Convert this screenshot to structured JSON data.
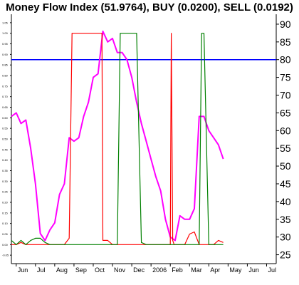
{
  "chart_data": {
    "type": "line",
    "title": "Money Flow Index (51.9764), BUY (0.0200), SELL (0.0192)",
    "xlabel": "",
    "ylabel": "",
    "x_ticks": [
      "Jun",
      "Jul",
      "Aug",
      "Sep",
      "Oct",
      "Nov",
      "Dec",
      "2006",
      "Feb",
      "Mar",
      "Apr",
      "May",
      "Jun",
      "Jul"
    ],
    "x_tick_index": [
      0,
      4,
      8,
      12,
      16,
      20,
      24,
      28,
      32,
      36,
      40,
      44,
      48,
      52
    ],
    "x_range": [
      -1,
      54
    ],
    "right_axis": {
      "ticks": [
        25,
        30,
        35,
        40,
        45,
        50,
        55,
        60,
        65,
        70,
        75,
        80,
        85,
        90
      ],
      "range": [
        22.5,
        92.8
      ]
    },
    "left_axis": {
      "ticks": [
        -0.05,
        0.0,
        0.05,
        0.1,
        0.15,
        0.2,
        0.25,
        0.3,
        0.35,
        0.4,
        0.45,
        0.5,
        0.55,
        0.6,
        0.65,
        0.7,
        0.75,
        0.8,
        0.85,
        0.9,
        0.95,
        1.0,
        1.05
      ],
      "tick_labels": [
        "-0.05",
        "0.00",
        "0.05",
        "0.10",
        "0.15",
        "0.20",
        "0.25",
        "0.30",
        "0.35",
        "0.40",
        "0.45",
        "0.50",
        "0.55",
        "0.60",
        "0.65",
        "0.70",
        "0.75",
        "0.80",
        "0.85",
        "0.90",
        "0.95",
        "1.00",
        "1.05"
      ],
      "range": [
        -0.09,
        1.09
      ]
    },
    "reference_line": {
      "axis": "right",
      "value": 80,
      "color": "#0000ff"
    },
    "series": [
      {
        "axis": "right",
        "color": "#ff00ff",
        "x": [
          -1,
          0,
          1,
          2,
          3,
          4,
          5,
          6,
          7,
          8,
          9,
          10,
          11,
          12,
          13,
          14,
          15,
          16,
          17,
          18,
          19,
          20,
          21,
          22,
          23,
          24,
          25,
          26,
          27,
          28,
          29,
          30,
          31,
          32,
          33,
          34,
          35,
          36,
          37,
          38,
          39,
          40,
          41,
          42,
          43
        ],
        "values": [
          64,
          65,
          62,
          63,
          55,
          45,
          31,
          29,
          32,
          34,
          42,
          45,
          58,
          57,
          58,
          64,
          68,
          75,
          76,
          88,
          85,
          86,
          82,
          82,
          80,
          75,
          68,
          62,
          57,
          52,
          47,
          43,
          35,
          30,
          29,
          36,
          35,
          35,
          38,
          64,
          64,
          60,
          58,
          56,
          52
        ]
      },
      {
        "axis": "left",
        "color": "#ff0000",
        "x": [
          -1,
          0,
          1,
          2,
          3,
          4,
          5,
          6,
          7,
          8,
          9,
          10,
          11,
          11.6,
          12,
          13,
          14,
          15,
          16,
          17,
          17.8,
          18,
          19,
          20,
          21,
          22,
          23,
          24,
          25,
          26,
          27,
          28,
          29,
          30,
          31,
          32,
          32.2,
          32.5,
          32.8,
          33,
          34,
          35,
          36,
          37,
          38,
          39,
          40,
          41,
          42,
          43
        ],
        "values": [
          0.0,
          0.0,
          0.01,
          0.0,
          0.0,
          0.0,
          0.0,
          0.0,
          0.0,
          0.0,
          0.0,
          0.0,
          0.03,
          1.0,
          1.0,
          1.0,
          1.0,
          1.0,
          1.0,
          1.0,
          1.0,
          0.02,
          0.02,
          0.0,
          0.0,
          0.0,
          0.0,
          0.0,
          0.0,
          0.0,
          0.0,
          0.0,
          0.0,
          0.0,
          0.0,
          0.0,
          1.0,
          0.02,
          0.0,
          0.0,
          0.0,
          0.0,
          0.05,
          0.06,
          0.0,
          0.0,
          0.0,
          0.0,
          0.02,
          0.01
        ]
      },
      {
        "axis": "left",
        "color": "#008000",
        "x": [
          -1,
          0,
          1,
          2,
          3,
          4,
          5,
          6,
          7,
          8,
          9,
          10,
          11,
          12,
          13,
          14,
          15,
          16,
          17,
          18,
          19,
          20,
          21,
          21.6,
          22,
          23,
          24,
          25,
          26,
          27,
          28,
          29,
          30,
          31,
          32,
          33,
          34,
          35,
          36,
          37,
          38,
          38.5,
          39,
          40,
          41,
          42,
          43
        ],
        "values": [
          0.02,
          0.0,
          0.02,
          0.0,
          0.02,
          0.03,
          0.03,
          0.01,
          0.0,
          0.0,
          0.0,
          0.0,
          0.0,
          0.0,
          0.0,
          0.0,
          0.0,
          0.0,
          0.0,
          0.0,
          0.0,
          0.0,
          0.0,
          1.0,
          1.0,
          1.0,
          1.0,
          1.0,
          0.01,
          0.0,
          0.0,
          0.0,
          0.0,
          0.0,
          0.0,
          0.0,
          0.0,
          0.0,
          0.0,
          0.0,
          0.0,
          1.0,
          1.0,
          0.0,
          0.0,
          0.0,
          0.0
        ]
      }
    ]
  }
}
